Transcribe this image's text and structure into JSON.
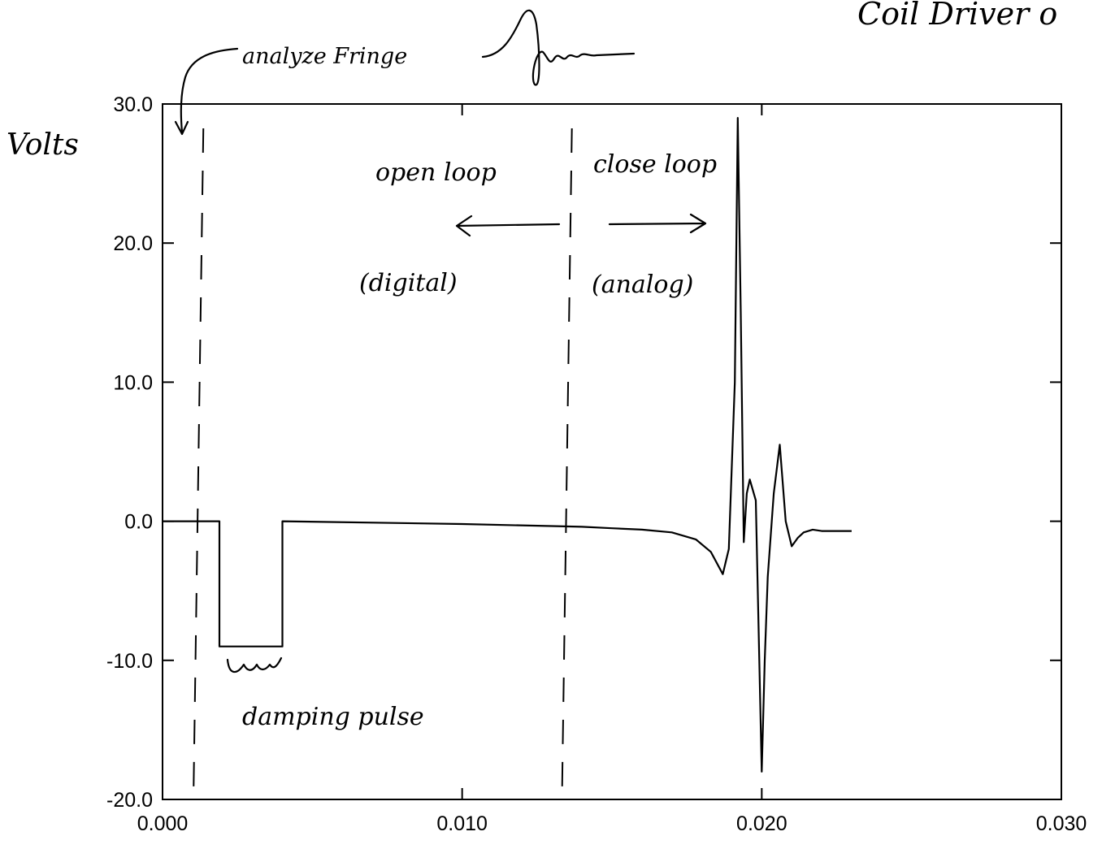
{
  "chart_data": {
    "type": "line",
    "title": "Coil Driver o",
    "ylabel": "Volts",
    "xlabel": "",
    "xlim": [
      0.0,
      0.03
    ],
    "ylim": [
      -20.0,
      30.0
    ],
    "x_ticks": [
      "0.000",
      "0.010",
      "0.020",
      "0.030"
    ],
    "y_ticks": [
      "30.0",
      "20.0",
      "10.0",
      "0.0",
      "-10.0",
      "-20.0"
    ],
    "grid": false,
    "series": [
      {
        "x": [
          0.0,
          0.0019,
          0.0019,
          0.004,
          0.004,
          0.01,
          0.014,
          0.015,
          0.016,
          0.017,
          0.0178,
          0.0183,
          0.0187,
          0.0189,
          0.0191,
          0.0192,
          0.0193,
          0.0194,
          0.0195,
          0.0196,
          0.0198,
          0.02,
          0.0201,
          0.0202,
          0.0204,
          0.0206,
          0.0208,
          0.021,
          0.0212,
          0.0214,
          0.0217,
          0.022,
          0.0226,
          0.023
        ],
        "y": [
          0.0,
          0.0,
          -9.0,
          -9.0,
          0.0,
          -0.2,
          -0.4,
          -0.5,
          -0.6,
          -0.8,
          -1.3,
          -2.2,
          -3.8,
          -2.0,
          10.0,
          29.0,
          15.0,
          -1.5,
          2.0,
          3.0,
          1.5,
          -18.0,
          -10.0,
          -4.0,
          2.0,
          5.5,
          0.0,
          -1.8,
          -1.2,
          -0.8,
          -0.6,
          -0.7,
          -0.7,
          -0.7
        ]
      }
    ],
    "vertical_markers": [
      0.0012,
      0.0135
    ],
    "annotations": {
      "analyze": "analyze Fringe",
      "open_loop": "open loop",
      "close_loop": "close loop",
      "digital": "(digital)",
      "analog": "(analog)",
      "damping": "damping pulse"
    }
  }
}
